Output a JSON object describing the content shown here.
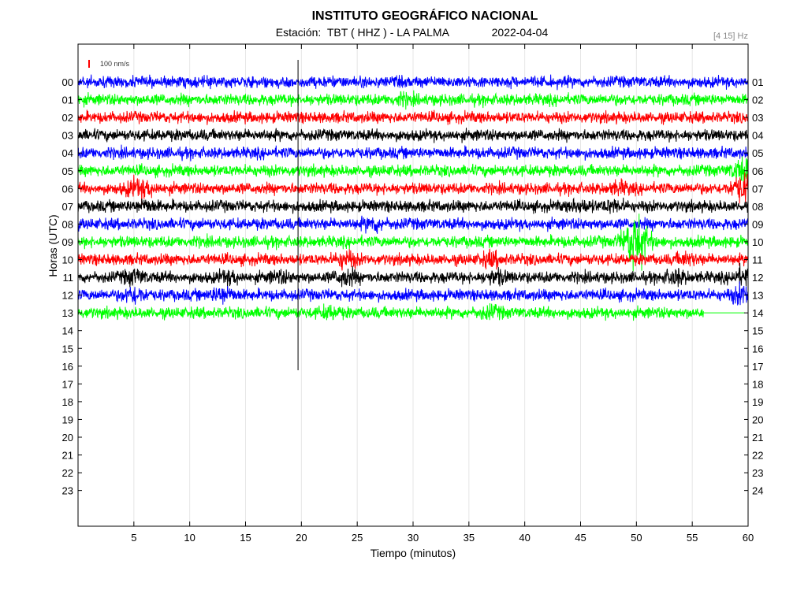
{
  "header": {
    "title": "INSTITUTO GEOGRÁFICO NACIONAL",
    "station_prefix": "Estación:",
    "station": "TBT ( HHZ ) - LA PALMA",
    "date": "2022-04-04",
    "filter": "[4 15] Hz",
    "scale": "100 nm/s"
  },
  "colors": {
    "traces": [
      "#0000ff",
      "#00ff00",
      "#ff0000",
      "#000000"
    ],
    "scale_bar": "#ff0000",
    "grid": "#e6e6e6"
  },
  "chart_data": {
    "type": "line",
    "title": "INSTITUTO GEOGRÁFICO NACIONAL",
    "xlabel": "Tiempo (minutos)",
    "ylabel": "Horas (UTC)",
    "xlim": [
      0,
      60
    ],
    "ylim": [
      0,
      24
    ],
    "x_ticks": [
      "5",
      "10",
      "15",
      "20",
      "25",
      "30",
      "35",
      "40",
      "45",
      "50",
      "55",
      "60"
    ],
    "y_ticks_left": [
      "00",
      "01",
      "02",
      "03",
      "04",
      "05",
      "06",
      "07",
      "08",
      "09",
      "10",
      "11",
      "12",
      "13",
      "14",
      "15",
      "16",
      "17",
      "18",
      "19",
      "20",
      "21",
      "22",
      "23"
    ],
    "y_ticks_right": [
      "01",
      "02",
      "03",
      "04",
      "05",
      "06",
      "07",
      "08",
      "09",
      "10",
      "11",
      "12",
      "13",
      "14",
      "15",
      "16",
      "17",
      "18",
      "19",
      "20",
      "21",
      "22",
      "23",
      "24"
    ],
    "grid": "vertical",
    "series": [
      {
        "hour": "00",
        "color_index": 0,
        "end_minute": 60
      },
      {
        "hour": "01",
        "color_index": 1,
        "end_minute": 60
      },
      {
        "hour": "02",
        "color_index": 2,
        "end_minute": 60
      },
      {
        "hour": "03",
        "color_index": 3,
        "end_minute": 60
      },
      {
        "hour": "04",
        "color_index": 0,
        "end_minute": 60
      },
      {
        "hour": "05",
        "color_index": 1,
        "end_minute": 60
      },
      {
        "hour": "06",
        "color_index": 2,
        "end_minute": 60
      },
      {
        "hour": "07",
        "color_index": 3,
        "end_minute": 60
      },
      {
        "hour": "08",
        "color_index": 0,
        "end_minute": 60
      },
      {
        "hour": "09",
        "color_index": 1,
        "end_minute": 60
      },
      {
        "hour": "10",
        "color_index": 2,
        "end_minute": 60
      },
      {
        "hour": "11",
        "color_index": 3,
        "end_minute": 60
      },
      {
        "hour": "12",
        "color_index": 0,
        "end_minute": 60
      },
      {
        "hour": "13",
        "color_index": 1,
        "end_minute": 56
      }
    ]
  }
}
